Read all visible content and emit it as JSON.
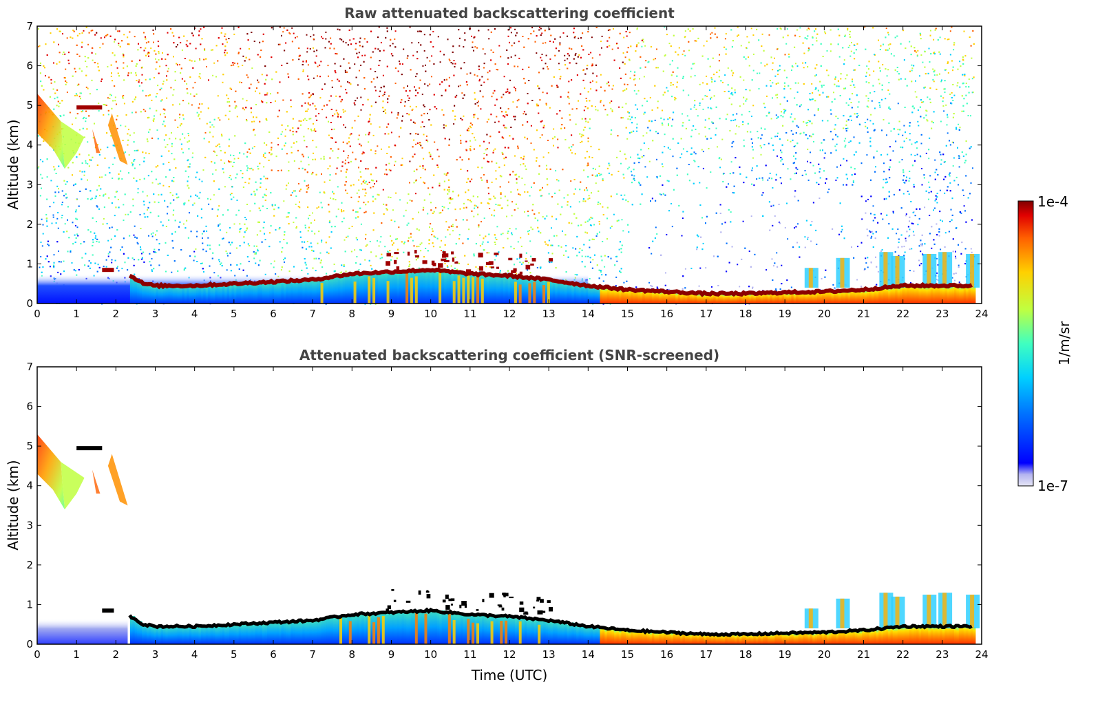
{
  "chart_data": [
    {
      "type": "heatmap",
      "title": "Raw attenuated backscattering coefficient",
      "xlabel": "",
      "ylabel": "Altitude (km)",
      "xlim": [
        0,
        24
      ],
      "ylim": [
        0,
        7
      ],
      "xticks": [
        "0",
        "1",
        "2",
        "3",
        "4",
        "5",
        "6",
        "7",
        "8",
        "9",
        "10",
        "11",
        "12",
        "13",
        "14",
        "15",
        "16",
        "17",
        "18",
        "19",
        "20",
        "21",
        "22",
        "23",
        "24"
      ],
      "yticks": [
        "0",
        "1",
        "2",
        "3",
        "4",
        "5",
        "6",
        "7"
      ],
      "data_end_hour": 23.8,
      "boundary_layer_top_km": [
        [
          2.3,
          0.75
        ],
        [
          2.7,
          0.5
        ],
        [
          3,
          0.45
        ],
        [
          4,
          0.45
        ],
        [
          5,
          0.5
        ],
        [
          6,
          0.55
        ],
        [
          7,
          0.6
        ],
        [
          8,
          0.75
        ],
        [
          9,
          0.8
        ],
        [
          10,
          0.85
        ],
        [
          11,
          0.75
        ],
        [
          12,
          0.7
        ],
        [
          13,
          0.6
        ],
        [
          14,
          0.45
        ],
        [
          15,
          0.35
        ],
        [
          16,
          0.3
        ],
        [
          17,
          0.25
        ],
        [
          18,
          0.25
        ],
        [
          19,
          0.28
        ],
        [
          20,
          0.3
        ],
        [
          21,
          0.35
        ],
        [
          22,
          0.45
        ],
        [
          23,
          0.45
        ],
        [
          23.8,
          0.45
        ]
      ],
      "cirrus_layer": {
        "t_start": 0.0,
        "t_end": 2.3,
        "alt_bottom_km": 3.4,
        "alt_top_km": 5.3
      },
      "noise_background": "high above 1 km, increasing with altitude, strongest 8–12 UTC"
    },
    {
      "type": "heatmap",
      "title": "Attenuated backscattering coefficient (SNR-screened)",
      "xlabel": "Time (UTC)",
      "ylabel": "Altitude (km)",
      "xlim": [
        0,
        24
      ],
      "ylim": [
        0,
        7
      ],
      "xticks": [
        "0",
        "1",
        "2",
        "3",
        "4",
        "5",
        "6",
        "7",
        "8",
        "9",
        "10",
        "11",
        "12",
        "13",
        "14",
        "15",
        "16",
        "17",
        "18",
        "19",
        "20",
        "21",
        "22",
        "23",
        "24"
      ],
      "yticks": [
        "0",
        "1",
        "2",
        "3",
        "4",
        "5",
        "6",
        "7"
      ],
      "data_end_hour": 23.8,
      "cirrus_layer": {
        "t_start": 0.0,
        "t_end": 2.3,
        "alt_bottom_km": 3.4,
        "alt_top_km": 5.3
      },
      "noise_background": "screened out (white)"
    }
  ],
  "colorbar": {
    "max_label": "1e-4",
    "min_label": "1e-7",
    "unit_label": "1/m/sr",
    "colormap": [
      "#e6e6f5",
      "#b4b4f0",
      "#0000ff",
      "#0070ff",
      "#00d0ff",
      "#40ffc0",
      "#c0ff40",
      "#ffd000",
      "#ff6000",
      "#e00000",
      "#800000"
    ]
  }
}
